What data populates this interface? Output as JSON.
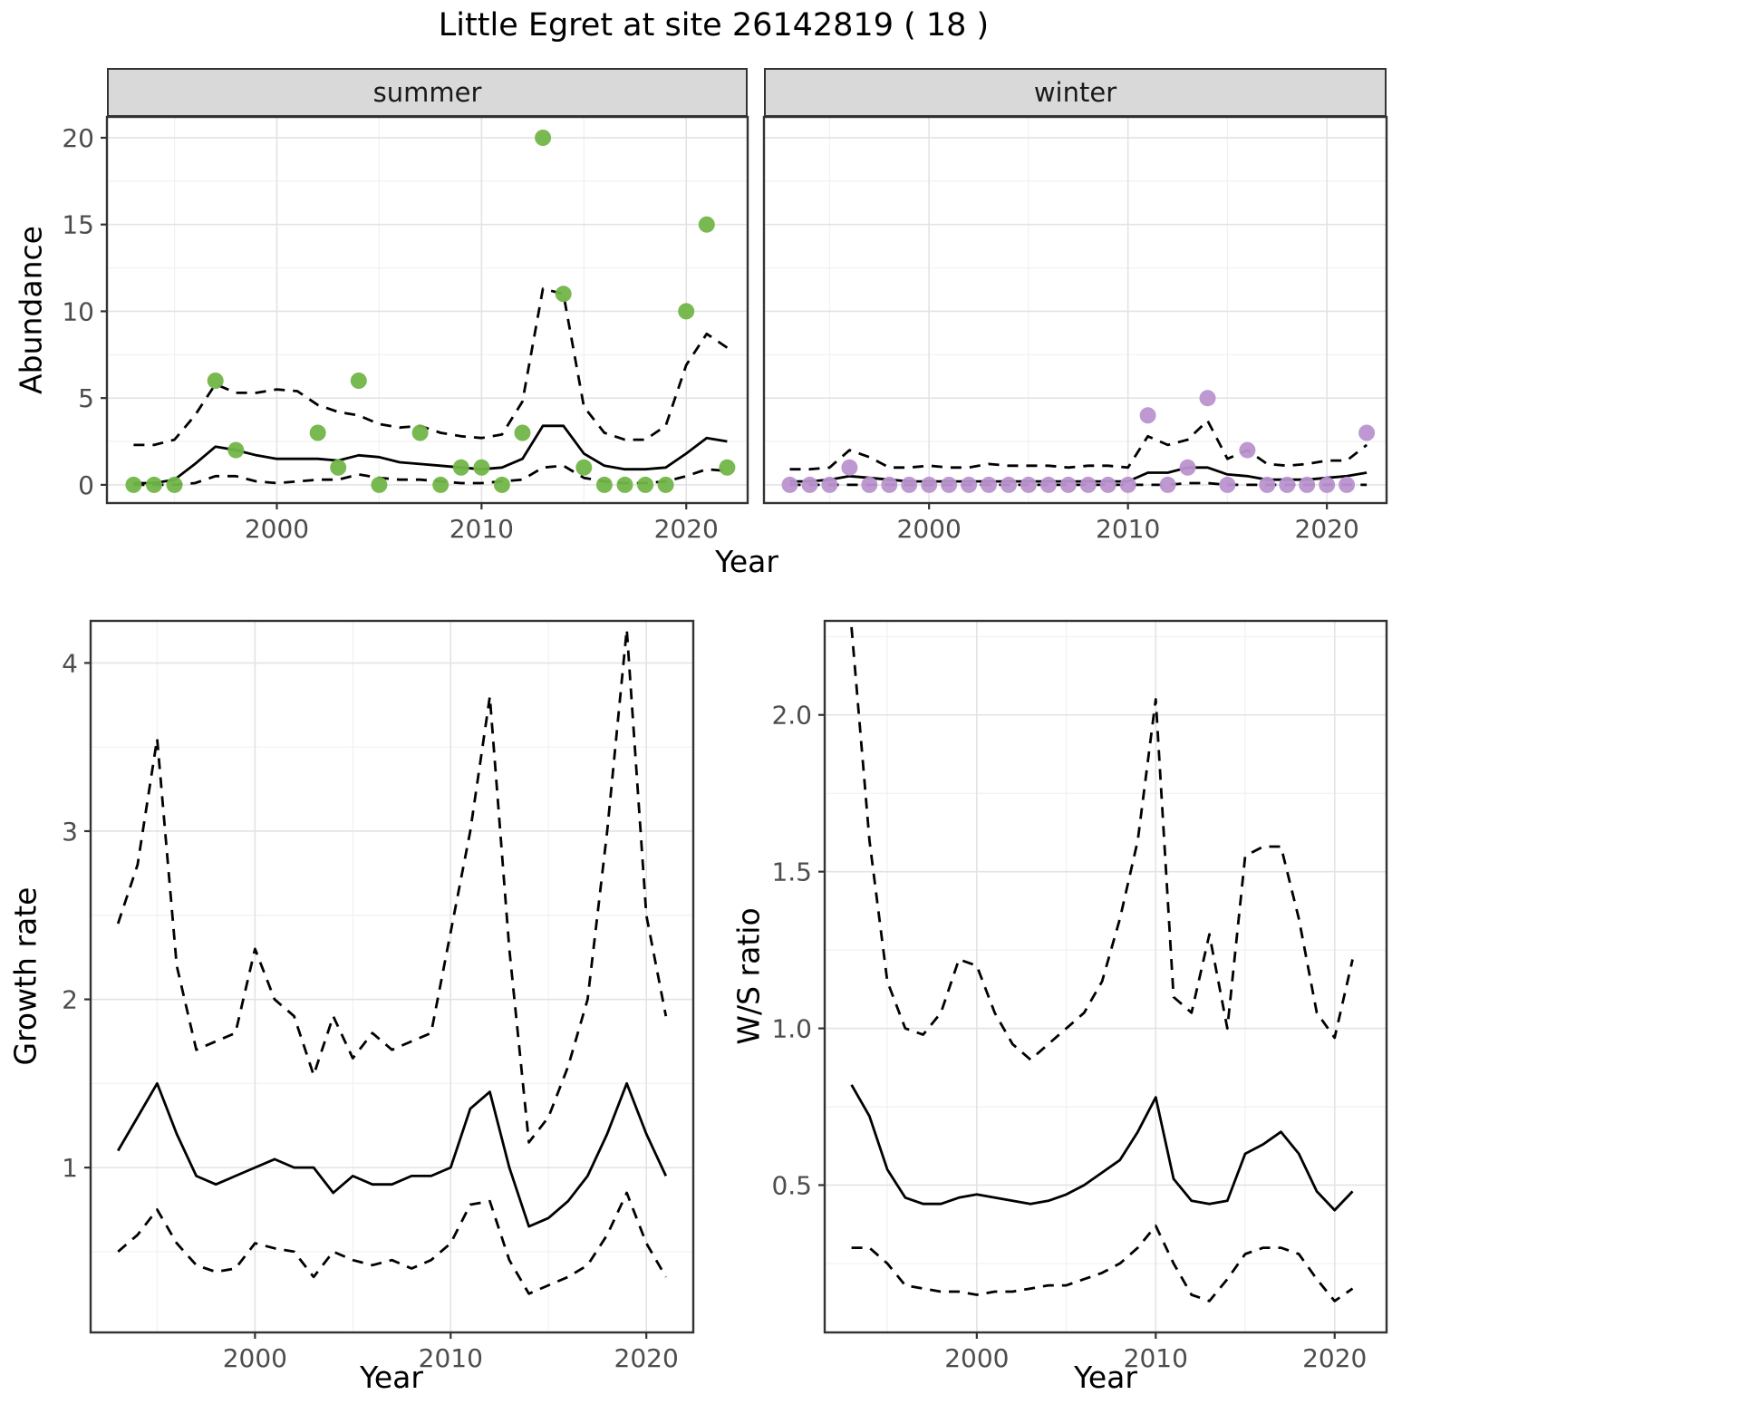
{
  "title": "Little Egret at site 26142819 ( 18 )",
  "facets": {
    "summer": "summer",
    "winter": "winter"
  },
  "axis_titles": {
    "abundance": "Abundance",
    "year": "Year",
    "growth_rate": "Growth rate",
    "ws_ratio": "W/S ratio"
  },
  "colors": {
    "summer_points": "#72b548",
    "winter_points": "#bb92cd",
    "line": "#000000",
    "strip_bg": "#d9d9d9",
    "grid_major": "#e3e3e3",
    "grid_minor": "#f1f1f1",
    "panel_border": "#333333"
  },
  "chart_data": [
    {
      "id": "abundance_summer",
      "type": "line",
      "facet": "summer",
      "xlabel": "Year",
      "ylabel": "Abundance",
      "xlim": [
        1991.7,
        2023.0
      ],
      "ylim": [
        -1.05,
        21.2
      ],
      "xticks": [
        2000,
        2010,
        2020
      ],
      "xticklabels": [
        "2000",
        "2010",
        "2020"
      ],
      "yticks": [
        0,
        5,
        10,
        15,
        20
      ],
      "yticklabels": [
        "0",
        "5",
        "10",
        "15",
        "20"
      ],
      "xminor": [
        1995,
        2005,
        2015
      ],
      "yminor": [
        2.5,
        7.5,
        12.5,
        17.5
      ],
      "x": [
        1993,
        1994,
        1995,
        1996,
        1997,
        1998,
        1999,
        2000,
        2001,
        2002,
        2003,
        2004,
        2005,
        2006,
        2007,
        2008,
        2009,
        2010,
        2011,
        2012,
        2013,
        2014,
        2015,
        2016,
        2017,
        2018,
        2019,
        2020,
        2021,
        2022
      ],
      "series": [
        {
          "name": "median",
          "style": "solid",
          "values": [
            0.1,
            0.1,
            0.3,
            1.2,
            2.2,
            2.0,
            1.7,
            1.5,
            1.5,
            1.5,
            1.4,
            1.7,
            1.6,
            1.3,
            1.2,
            1.1,
            1.0,
            0.9,
            1.0,
            1.5,
            3.4,
            3.4,
            1.8,
            1.1,
            0.9,
            0.9,
            1.0,
            1.8,
            2.7,
            2.5
          ]
        },
        {
          "name": "upper_ci",
          "style": "dashed",
          "values": [
            2.3,
            2.3,
            2.6,
            4.0,
            5.8,
            5.3,
            5.3,
            5.5,
            5.4,
            4.6,
            4.2,
            4.0,
            3.5,
            3.3,
            3.4,
            3.0,
            2.8,
            2.7,
            2.9,
            4.8,
            11.3,
            11.0,
            4.5,
            3.0,
            2.6,
            2.6,
            3.4,
            6.9,
            8.7,
            7.9
          ]
        },
        {
          "name": "lower_ci",
          "style": "dashed",
          "values": [
            0,
            0,
            0,
            0.1,
            0.5,
            0.5,
            0.2,
            0.1,
            0.2,
            0.3,
            0.3,
            0.6,
            0.4,
            0.3,
            0.3,
            0.2,
            0.1,
            0.1,
            0.2,
            0.3,
            1.0,
            1.1,
            0.4,
            0.2,
            0.1,
            0.1,
            0.2,
            0.5,
            0.9,
            0.8
          ]
        }
      ],
      "points": {
        "name": "observed_counts",
        "color_key": "summer_points",
        "x": [
          1993,
          1994,
          1995,
          1997,
          1998,
          2002,
          2003,
          2004,
          2005,
          2007,
          2008,
          2009,
          2010,
          2011,
          2012,
          2013,
          2014,
          2015,
          2016,
          2017,
          2018,
          2019,
          2020,
          2021,
          2022
        ],
        "y": [
          0,
          0,
          0,
          6,
          2,
          3,
          1,
          6,
          0,
          3,
          0,
          1,
          1,
          0,
          3,
          20,
          11,
          1,
          0,
          0,
          0,
          0,
          10,
          15,
          1
        ]
      }
    },
    {
      "id": "abundance_winter",
      "type": "line",
      "facet": "winter",
      "xlabel": "Year",
      "ylabel": "Abundance",
      "xlim": [
        1991.7,
        2023.0
      ],
      "ylim": [
        -1.05,
        21.2
      ],
      "xticks": [
        2000,
        2010,
        2020
      ],
      "xticklabels": [
        "2000",
        "2010",
        "2020"
      ],
      "yticks": [
        0,
        5,
        10,
        15,
        20
      ],
      "yticklabels": [
        "0",
        "5",
        "10",
        "15",
        "20"
      ],
      "xminor": [
        1995,
        2005,
        2015
      ],
      "yminor": [
        2.5,
        7.5,
        12.5,
        17.5
      ],
      "x": [
        1993,
        1994,
        1995,
        1996,
        1997,
        1998,
        1999,
        2000,
        2001,
        2002,
        2003,
        2004,
        2005,
        2006,
        2007,
        2008,
        2009,
        2010,
        2011,
        2012,
        2013,
        2014,
        2015,
        2016,
        2017,
        2018,
        2019,
        2020,
        2021,
        2022
      ],
      "series": [
        {
          "name": "median",
          "style": "solid",
          "values": [
            0.2,
            0.2,
            0.3,
            0.5,
            0.4,
            0.3,
            0.2,
            0.2,
            0.2,
            0.2,
            0.2,
            0.2,
            0.2,
            0.2,
            0.2,
            0.2,
            0.2,
            0.2,
            0.7,
            0.7,
            1.0,
            1.0,
            0.6,
            0.5,
            0.3,
            0.3,
            0.3,
            0.4,
            0.5,
            0.7
          ]
        },
        {
          "name": "upper_ci",
          "style": "dashed",
          "values": [
            0.9,
            0.9,
            1.0,
            2.0,
            1.6,
            1.0,
            1.0,
            1.1,
            1.0,
            1.0,
            1.2,
            1.1,
            1.1,
            1.1,
            1.0,
            1.1,
            1.1,
            1.0,
            2.8,
            2.3,
            2.6,
            3.7,
            1.5,
            2.0,
            1.2,
            1.1,
            1.2,
            1.4,
            1.4,
            2.3
          ]
        },
        {
          "name": "lower_ci",
          "style": "dashed",
          "values": [
            0,
            0,
            0,
            0,
            0,
            0,
            0,
            0,
            0,
            0,
            0,
            0,
            0,
            0,
            0,
            0,
            0,
            0,
            0,
            0,
            0.1,
            0.1,
            0,
            0,
            0,
            0,
            0,
            0,
            0,
            0
          ]
        }
      ],
      "points": {
        "name": "observed_counts",
        "color_key": "winter_points",
        "x": [
          1993,
          1994,
          1995,
          1996,
          1997,
          1998,
          1999,
          2000,
          2001,
          2002,
          2003,
          2004,
          2005,
          2006,
          2007,
          2008,
          2009,
          2010,
          2011,
          2012,
          2013,
          2014,
          2015,
          2016,
          2017,
          2018,
          2019,
          2020,
          2021,
          2022
        ],
        "y": [
          0,
          0,
          0,
          1,
          0,
          0,
          0,
          0,
          0,
          0,
          0,
          0,
          0,
          0,
          0,
          0,
          0,
          0,
          4,
          0,
          1,
          5,
          0,
          2,
          0,
          0,
          0,
          0,
          0,
          3
        ]
      }
    },
    {
      "id": "growth_rate",
      "type": "line",
      "xlabel": "Year",
      "ylabel": "Growth rate",
      "xlim": [
        1991.6,
        2022.4
      ],
      "ylim": [
        0.02,
        4.25
      ],
      "xticks": [
        2000,
        2010,
        2020
      ],
      "xticklabels": [
        "2000",
        "2010",
        "2020"
      ],
      "yticks": [
        1,
        2,
        3,
        4
      ],
      "yticklabels": [
        "1",
        "2",
        "3",
        "4"
      ],
      "xminor": [
        1995,
        2005,
        2015
      ],
      "yminor": [
        0.5,
        1.5,
        2.5,
        3.5
      ],
      "x": [
        1993,
        1994,
        1995,
        1996,
        1997,
        1998,
        1999,
        2000,
        2001,
        2002,
        2003,
        2004,
        2005,
        2006,
        2007,
        2008,
        2009,
        2010,
        2011,
        2012,
        2013,
        2014,
        2015,
        2016,
        2017,
        2018,
        2019,
        2020,
        2021
      ],
      "series": [
        {
          "name": "median",
          "style": "solid",
          "values": [
            1.1,
            1.3,
            1.5,
            1.2,
            0.95,
            0.9,
            0.95,
            1.0,
            1.05,
            1.0,
            1.0,
            0.85,
            0.95,
            0.9,
            0.9,
            0.95,
            0.95,
            1.0,
            1.35,
            1.45,
            1.0,
            0.65,
            0.7,
            0.8,
            0.95,
            1.2,
            1.5,
            1.2,
            0.95
          ]
        },
        {
          "name": "upper_ci",
          "style": "dashed",
          "values": [
            2.45,
            2.8,
            3.55,
            2.2,
            1.7,
            1.75,
            1.8,
            2.3,
            2.0,
            1.9,
            1.55,
            1.9,
            1.65,
            1.8,
            1.7,
            1.75,
            1.8,
            2.4,
            3.0,
            3.8,
            2.3,
            1.15,
            1.3,
            1.6,
            2.0,
            3.0,
            4.2,
            2.5,
            1.9
          ]
        },
        {
          "name": "lower_ci",
          "style": "dashed",
          "values": [
            0.5,
            0.6,
            0.75,
            0.55,
            0.42,
            0.38,
            0.4,
            0.55,
            0.52,
            0.5,
            0.35,
            0.5,
            0.45,
            0.42,
            0.45,
            0.4,
            0.45,
            0.55,
            0.78,
            0.8,
            0.45,
            0.25,
            0.3,
            0.35,
            0.42,
            0.6,
            0.85,
            0.55,
            0.35
          ]
        }
      ]
    },
    {
      "id": "ws_ratio",
      "type": "line",
      "xlabel": "Year",
      "ylabel": "W/S ratio",
      "xlim": [
        1991.5,
        2022.9
      ],
      "ylim": [
        0.03,
        2.3
      ],
      "xticks": [
        2000,
        2010,
        2020
      ],
      "xticklabels": [
        "2000",
        "2010",
        "2020"
      ],
      "yticks": [
        0.5,
        1.0,
        1.5,
        2.0
      ],
      "yticklabels": [
        "0.5",
        "1.0",
        "1.5",
        "2.0"
      ],
      "xminor": [
        1995,
        2005,
        2015
      ],
      "yminor": [
        0.25,
        0.75,
        1.25,
        1.75,
        2.25
      ],
      "x": [
        1993,
        1994,
        1995,
        1996,
        1997,
        1998,
        1999,
        2000,
        2001,
        2002,
        2003,
        2004,
        2005,
        2006,
        2007,
        2008,
        2009,
        2010,
        2011,
        2012,
        2013,
        2014,
        2015,
        2016,
        2017,
        2018,
        2019,
        2020,
        2021
      ],
      "series": [
        {
          "name": "median",
          "style": "solid",
          "values": [
            0.82,
            0.72,
            0.55,
            0.46,
            0.44,
            0.44,
            0.46,
            0.47,
            0.46,
            0.45,
            0.44,
            0.45,
            0.47,
            0.5,
            0.54,
            0.58,
            0.67,
            0.78,
            0.52,
            0.45,
            0.44,
            0.45,
            0.6,
            0.63,
            0.67,
            0.6,
            0.48,
            0.42,
            0.48
          ]
        },
        {
          "name": "upper_ci",
          "style": "dashed",
          "values": [
            2.28,
            1.6,
            1.15,
            1.0,
            0.98,
            1.05,
            1.22,
            1.2,
            1.05,
            0.95,
            0.9,
            0.95,
            1.0,
            1.05,
            1.15,
            1.35,
            1.6,
            2.05,
            1.1,
            1.05,
            1.3,
            1.0,
            1.55,
            1.58,
            1.58,
            1.35,
            1.05,
            0.97,
            1.22
          ]
        },
        {
          "name": "lower_ci",
          "style": "dashed",
          "values": [
            0.3,
            0.3,
            0.25,
            0.18,
            0.17,
            0.16,
            0.16,
            0.15,
            0.16,
            0.16,
            0.17,
            0.18,
            0.18,
            0.2,
            0.22,
            0.25,
            0.3,
            0.37,
            0.25,
            0.15,
            0.13,
            0.2,
            0.28,
            0.3,
            0.3,
            0.28,
            0.2,
            0.13,
            0.17
          ]
        }
      ]
    }
  ]
}
